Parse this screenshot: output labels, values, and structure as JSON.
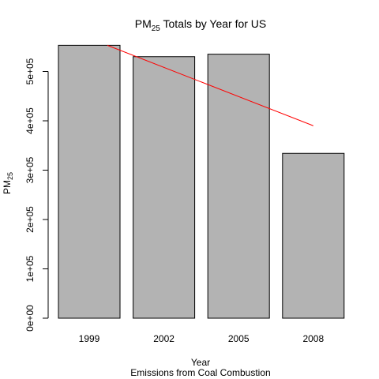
{
  "chart_data": {
    "type": "bar",
    "title": {
      "main": "PM",
      "sub": "25",
      "rest": " Totals by Year for US"
    },
    "xlabel": "Year",
    "subtitle": "Emissions from Coal Combustion",
    "ylabel": {
      "main": "PM",
      "sub": "25"
    },
    "categories": [
      "1999",
      "2002",
      "2005",
      "2008"
    ],
    "values": [
      553000,
      530000,
      535000,
      334000
    ],
    "ylim": [
      0,
      560000
    ],
    "yticks": [
      {
        "value": 0,
        "label": "0e+00"
      },
      {
        "value": 100000,
        "label": "1e+05"
      },
      {
        "value": 200000,
        "label": "2e+05"
      },
      {
        "value": 300000,
        "label": "3e+05"
      },
      {
        "value": 400000,
        "label": "4e+05"
      },
      {
        "value": 500000,
        "label": "5e+05"
      }
    ],
    "trend_line": {
      "start": 553000,
      "end": 390000
    },
    "bar_color": "#b3b3b3",
    "bar_stroke": "#000000",
    "trend_color": "#ff0000",
    "grid": false,
    "legend": "none"
  }
}
